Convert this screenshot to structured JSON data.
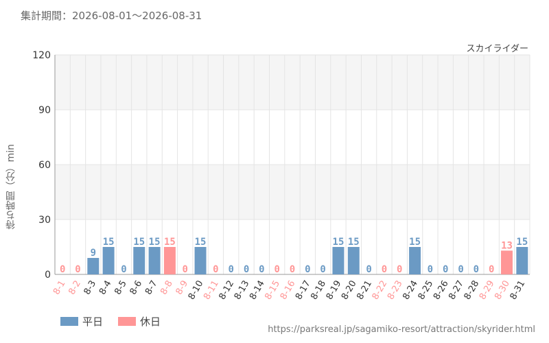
{
  "header": {
    "period_label": "集計期間：2026-08-01～2026-08-31",
    "attraction": "スカイライダー"
  },
  "source_url": "https://parksreal.jp/sagamiko-resort/attraction/skyrider.html",
  "colors": {
    "weekday": "#6b9ac4",
    "holiday": "#ff9696",
    "grid": "#e4e4e4",
    "band": "#f5f5f5"
  },
  "chart_data": {
    "type": "bar",
    "ylabel": "待ち時間（分）min",
    "ylim": [
      0,
      120
    ],
    "yticks": [
      0,
      30,
      60,
      90,
      120
    ],
    "grid": true,
    "legend_position": "bottom-left",
    "legend": [
      {
        "key": "weekday",
        "label": "平日"
      },
      {
        "key": "holiday",
        "label": "休日"
      }
    ],
    "categories": [
      "8-1",
      "8-2",
      "8-3",
      "8-4",
      "8-5",
      "8-6",
      "8-7",
      "8-8",
      "8-9",
      "8-10",
      "8-11",
      "8-12",
      "8-13",
      "8-14",
      "8-15",
      "8-16",
      "8-17",
      "8-18",
      "8-19",
      "8-20",
      "8-21",
      "8-22",
      "8-23",
      "8-24",
      "8-25",
      "8-26",
      "8-27",
      "8-28",
      "8-29",
      "8-30",
      "8-31"
    ],
    "values": [
      0,
      0,
      9,
      15,
      0,
      15,
      15,
      15,
      0,
      15,
      0,
      0,
      0,
      0,
      0,
      0,
      0,
      0,
      15,
      15,
      0,
      0,
      0,
      15,
      0,
      0,
      0,
      0,
      0,
      13,
      15
    ],
    "day_type": [
      "holiday",
      "holiday",
      "weekday",
      "weekday",
      "weekday",
      "weekday",
      "weekday",
      "holiday",
      "holiday",
      "weekday",
      "holiday",
      "weekday",
      "weekday",
      "weekday",
      "holiday",
      "holiday",
      "weekday",
      "weekday",
      "weekday",
      "weekday",
      "weekday",
      "holiday",
      "holiday",
      "weekday",
      "weekday",
      "weekday",
      "weekday",
      "weekday",
      "holiday",
      "holiday",
      "weekday"
    ]
  }
}
